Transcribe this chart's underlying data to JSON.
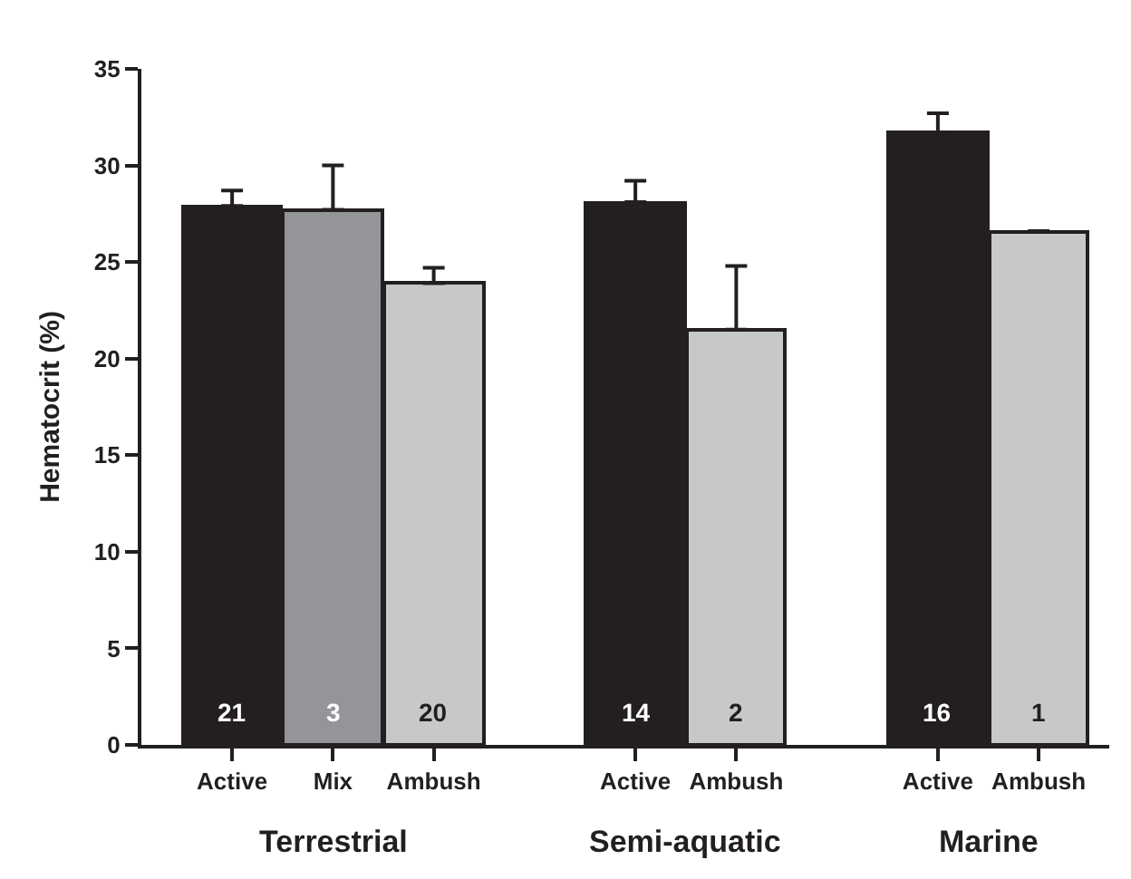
{
  "chart_data": {
    "type": "bar",
    "ylabel": "Hematocrit (%)",
    "categories": [
      "Active",
      "Mix",
      "Ambush",
      null,
      "Active",
      "Ambush",
      null,
      "Active",
      "Ambush"
    ],
    "values": [
      27.9,
      27.7,
      23.9,
      null,
      28.1,
      21.5,
      null,
      31.7,
      26.6
    ],
    "colors": [
      "#231f20",
      "#939598",
      "#c7c8ca",
      null,
      "#231f20",
      "#c7c8ca",
      null,
      "#231f20",
      "#c7c8ca"
    ],
    "errors": [
      [
        27.9,
        28.7
      ],
      [
        27.7,
        30.0
      ],
      [
        23.9,
        24.7
      ],
      null,
      [
        28.1,
        29.2
      ],
      [
        21.5,
        24.8
      ],
      null,
      [
        31.7,
        32.7
      ],
      null
    ],
    "annotations": [
      "Terrestrial",
      "Semi-aquatic",
      "Marine",
      "21",
      "3",
      "20",
      "14",
      "2",
      "16",
      "1"
    ],
    "ylim": [
      0,
      35
    ],
    "yticks": [
      0,
      5,
      10,
      15,
      20,
      25,
      30,
      35
    ],
    "grid": false,
    "legend": false
  }
}
